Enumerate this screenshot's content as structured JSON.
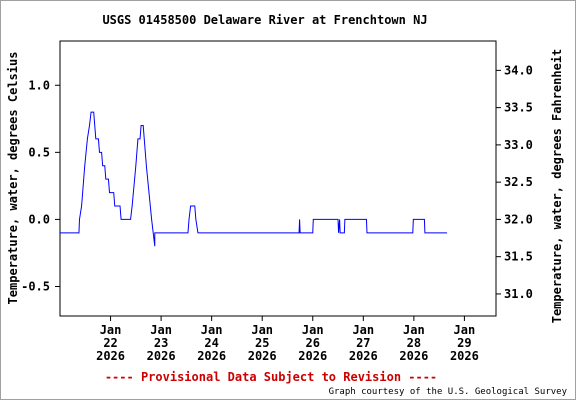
{
  "chart_data": {
    "type": "line",
    "title": "USGS 01458500 Delaware River at Frenchtown NJ",
    "ylabel_left": "Temperature, water, degrees Celsius",
    "ylabel_right": "Temperature, water, degrees Fahrenheit",
    "ylim": [
      -0.72,
      1.33
    ],
    "yticks": [
      -0.5,
      0.0,
      0.5,
      1.0
    ],
    "ytick_labels": [
      "-0.5",
      "0.0",
      "0.5",
      "1.0"
    ],
    "right_yticks": [
      31.0,
      31.5,
      32.0,
      32.5,
      33.0,
      33.5,
      34.0
    ],
    "right_ytick_labels": [
      "31.0",
      "31.5",
      "32.0",
      "32.5",
      "33.0",
      "33.5",
      "34.0"
    ],
    "xlim": [
      "2026-01-21T00:00",
      "2026-01-29T15:00"
    ],
    "xticks": [
      {
        "date": "2026-01-22",
        "month": "Jan",
        "day": "22",
        "year": "2026"
      },
      {
        "date": "2026-01-23",
        "month": "Jan",
        "day": "23",
        "year": "2026"
      },
      {
        "date": "2026-01-24",
        "month": "Jan",
        "day": "24",
        "year": "2026"
      },
      {
        "date": "2026-01-25",
        "month": "Jan",
        "day": "25",
        "year": "2026"
      },
      {
        "date": "2026-01-26",
        "month": "Jan",
        "day": "26",
        "year": "2026"
      },
      {
        "date": "2026-01-27",
        "month": "Jan",
        "day": "27",
        "year": "2026"
      },
      {
        "date": "2026-01-28",
        "month": "Jan",
        "day": "28",
        "year": "2026"
      },
      {
        "date": "2026-01-29",
        "month": "Jan",
        "day": "29",
        "year": "2026"
      }
    ],
    "grid": false,
    "series": [
      {
        "color": "#0000ff",
        "points": [
          [
            "2026-01-21T00:00",
            -0.1
          ],
          [
            "2026-01-21T09:00",
            -0.1
          ],
          [
            "2026-01-21T09:15",
            0.0
          ],
          [
            "2026-01-21T10:15",
            0.1
          ],
          [
            "2026-01-21T11:45",
            0.4
          ],
          [
            "2026-01-21T13:00",
            0.6
          ],
          [
            "2026-01-21T14:00",
            0.7
          ],
          [
            "2026-01-21T14:45",
            0.8
          ],
          [
            "2026-01-21T16:00",
            0.8
          ],
          [
            "2026-01-21T16:30",
            0.7
          ],
          [
            "2026-01-21T17:00",
            0.6
          ],
          [
            "2026-01-21T18:15",
            0.6
          ],
          [
            "2026-01-21T18:45",
            0.5
          ],
          [
            "2026-01-21T19:45",
            0.5
          ],
          [
            "2026-01-21T20:15",
            0.4
          ],
          [
            "2026-01-21T21:15",
            0.4
          ],
          [
            "2026-01-21T21:45",
            0.3
          ],
          [
            "2026-01-21T23:00",
            0.3
          ],
          [
            "2026-01-21T23:30",
            0.2
          ],
          [
            "2026-01-22T01:30",
            0.2
          ],
          [
            "2026-01-22T02:00",
            0.1
          ],
          [
            "2026-01-22T04:30",
            0.1
          ],
          [
            "2026-01-22T05:00",
            0.0
          ],
          [
            "2026-01-22T09:30",
            0.0
          ],
          [
            "2026-01-22T10:15",
            0.1
          ],
          [
            "2026-01-22T12:00",
            0.4
          ],
          [
            "2026-01-22T13:00",
            0.6
          ],
          [
            "2026-01-22T14:00",
            0.6
          ],
          [
            "2026-01-22T14:30",
            0.7
          ],
          [
            "2026-01-22T15:30",
            0.7
          ],
          [
            "2026-01-22T16:00",
            0.6
          ],
          [
            "2026-01-22T17:00",
            0.4
          ],
          [
            "2026-01-22T18:15",
            0.2
          ],
          [
            "2026-01-22T19:30",
            0.0
          ],
          [
            "2026-01-22T20:15",
            -0.1
          ],
          [
            "2026-01-22T21:00",
            -0.2
          ],
          [
            "2026-01-22T21:00",
            -0.1
          ],
          [
            "2026-01-23T12:45",
            -0.1
          ],
          [
            "2026-01-23T13:15",
            0.0
          ],
          [
            "2026-01-23T14:00",
            0.1
          ],
          [
            "2026-01-23T16:00",
            0.1
          ],
          [
            "2026-01-23T16:30",
            0.0
          ],
          [
            "2026-01-23T17:30",
            -0.1
          ],
          [
            "2026-01-25T17:30",
            -0.1
          ],
          [
            "2026-01-25T17:45",
            0.0
          ],
          [
            "2026-01-25T18:00",
            -0.1
          ],
          [
            "2026-01-26T00:00",
            -0.1
          ],
          [
            "2026-01-26T00:15",
            0.0
          ],
          [
            "2026-01-26T12:00",
            0.0
          ],
          [
            "2026-01-26T12:15",
            -0.1
          ],
          [
            "2026-01-26T12:45",
            0.0
          ],
          [
            "2026-01-26T13:00",
            -0.1
          ],
          [
            "2026-01-26T15:00",
            -0.1
          ],
          [
            "2026-01-26T15:15",
            0.0
          ],
          [
            "2026-01-27T01:30",
            0.0
          ],
          [
            "2026-01-27T01:45",
            -0.1
          ],
          [
            "2026-01-27T23:30",
            -0.1
          ],
          [
            "2026-01-27T23:45",
            0.0
          ],
          [
            "2026-01-28T05:00",
            0.0
          ],
          [
            "2026-01-28T05:15",
            -0.1
          ],
          [
            "2026-01-28T15:45",
            -0.1
          ]
        ]
      }
    ]
  },
  "footer": {
    "provisional": "---- Provisional Data Subject to Revision ----",
    "credit": "Graph courtesy of the U.S. Geological Survey"
  },
  "colors": {
    "line": "#0000ff",
    "provisional": "#cc0000",
    "axis": "#000000"
  }
}
